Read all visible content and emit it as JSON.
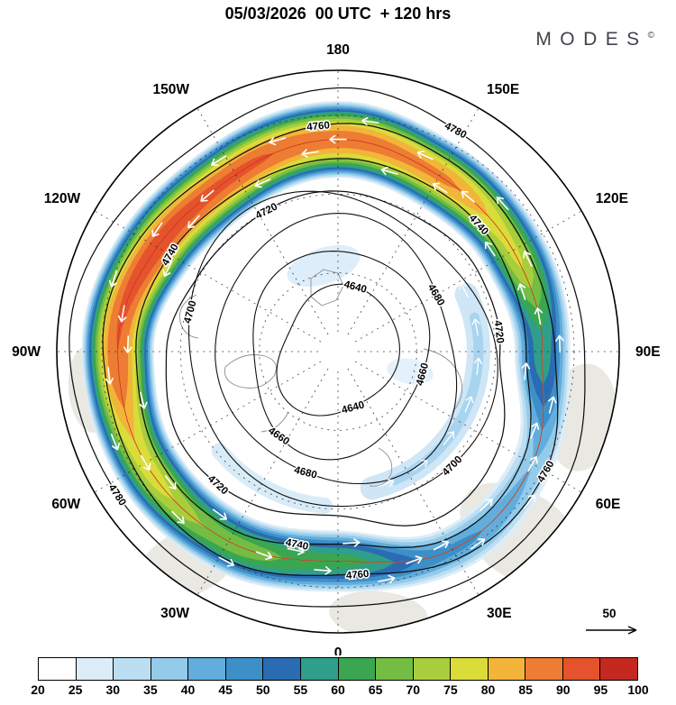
{
  "header": {
    "title": "05/03/2026  00 UTC  + 120 hrs",
    "brand": "MODES",
    "brand_mark": "©"
  },
  "chart_data": {
    "type": "contour-map",
    "projection": "north-polar-stereographic",
    "title": "05/03/2026 00 UTC + 120 hrs",
    "forecast_lead": "+ 120 hrs",
    "shaded_field": "wind speed (colorbar 20-100)",
    "contour_levels": [
      4640,
      4660,
      4680,
      4700,
      4720,
      4740,
      4760,
      4780
    ],
    "contour_interval": 20,
    "contour_label_angles": [
      [
        15,
        165
      ],
      [
        105,
        215
      ],
      [
        60,
        195
      ],
      [
        135,
        285
      ],
      [
        83,
        222,
        333
      ],
      [
        48,
        192,
        300
      ],
      [
        120,
        175,
        355
      ],
      [
        28,
        237
      ]
    ],
    "longitude_labels": [
      {
        "label": "180",
        "angle": 0
      },
      {
        "label": "150E",
        "angle": 30
      },
      {
        "label": "120E",
        "angle": 60
      },
      {
        "label": "90E",
        "angle": 90
      },
      {
        "label": "60E",
        "angle": 120
      },
      {
        "label": "30E",
        "angle": 150
      },
      {
        "label": "0",
        "angle": 180
      },
      {
        "label": "30W",
        "angle": 210
      },
      {
        "label": "60W",
        "angle": 240
      },
      {
        "label": "90W",
        "angle": 270
      },
      {
        "label": "120W",
        "angle": 300
      },
      {
        "label": "150W",
        "angle": 330
      }
    ],
    "colorbar": {
      "tick_labels": [
        20,
        25,
        30,
        35,
        40,
        45,
        50,
        55,
        60,
        65,
        70,
        75,
        80,
        85,
        90,
        95,
        100
      ],
      "colors": [
        "#ffffff",
        "#dcedf8",
        "#bcdef2",
        "#94cbea",
        "#62addc",
        "#3d8fc8",
        "#2a6cb3",
        "#2f9e8a",
        "#3aa651",
        "#73bd45",
        "#a9ce3c",
        "#dadc3a",
        "#f2b53a",
        "#ed7d32",
        "#e5532c",
        "#c4281f"
      ]
    },
    "reference_arrow": {
      "label": "50"
    },
    "jet_profile": {
      "angles_deg": [
        0,
        30,
        60,
        90,
        120,
        150,
        180,
        210,
        240,
        270,
        300,
        330
      ],
      "max_speed": [
        88,
        86,
        76,
        58,
        40,
        46,
        62,
        68,
        78,
        90,
        93,
        91
      ],
      "ring_radius_frac": [
        0.74,
        0.72,
        0.72,
        0.74,
        0.79,
        0.8,
        0.76,
        0.78,
        0.79,
        0.77,
        0.75,
        0.74
      ],
      "half_width_frac": [
        0.16,
        0.15,
        0.14,
        0.13,
        0.12,
        0.12,
        0.14,
        0.14,
        0.14,
        0.15,
        0.16,
        0.16
      ]
    }
  }
}
